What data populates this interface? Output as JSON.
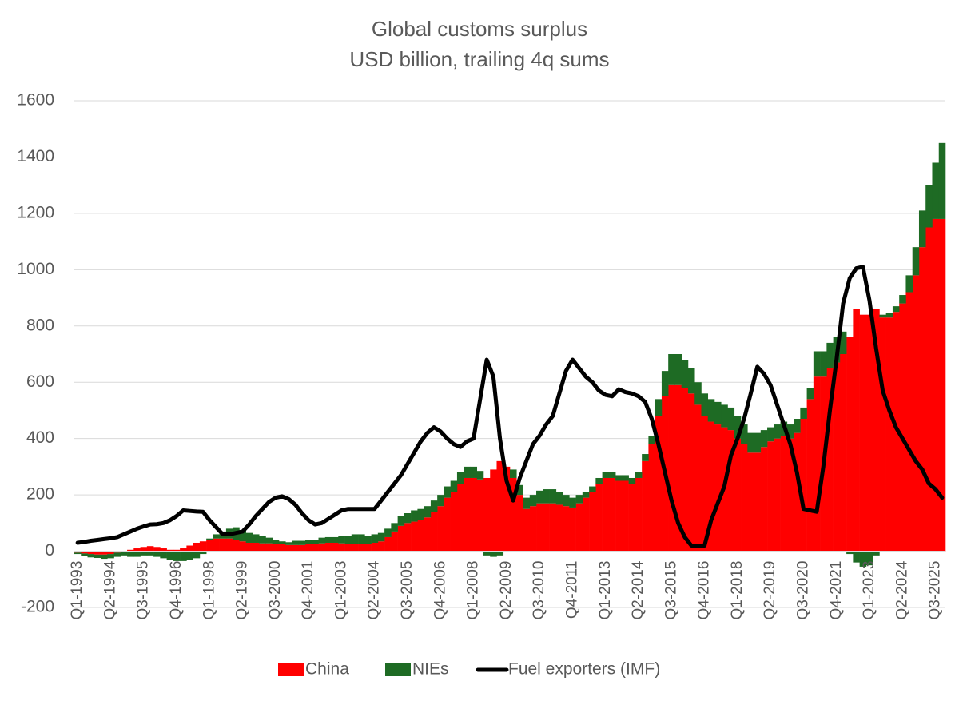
{
  "chart_data": {
    "type": "bar",
    "stacked": true,
    "title": "Global customs surplus",
    "subtitle": "USD billion, trailing 4q sums",
    "categories": [
      "Q1-1993",
      null,
      null,
      null,
      null,
      "Q2-1994",
      null,
      null,
      null,
      null,
      "Q3-1995",
      null,
      null,
      null,
      null,
      "Q4-1996",
      null,
      null,
      null,
      null,
      "Q1-1998",
      null,
      null,
      null,
      null,
      "Q2-1999",
      null,
      null,
      null,
      null,
      "Q3-2000",
      null,
      null,
      null,
      null,
      "Q4-2001",
      null,
      null,
      null,
      null,
      "Q1-2003",
      null,
      null,
      null,
      null,
      "Q2-2004",
      null,
      null,
      null,
      null,
      "Q3-2005",
      null,
      null,
      null,
      null,
      "Q4-2006",
      null,
      null,
      null,
      null,
      "Q1-2008",
      null,
      null,
      null,
      null,
      "Q2-2009",
      null,
      null,
      null,
      null,
      "Q3-2010",
      null,
      null,
      null,
      null,
      "Q4-2011",
      null,
      null,
      null,
      null,
      "Q1-2013",
      null,
      null,
      null,
      null,
      "Q2-2014",
      null,
      null,
      null,
      null,
      "Q3-2015",
      null,
      null,
      null,
      null,
      "Q4-2016",
      null,
      null,
      null,
      null,
      "Q1-2018",
      null,
      null,
      null,
      null,
      "Q2-2019",
      null,
      null,
      null,
      null,
      "Q3-2020",
      null,
      null,
      null,
      null,
      "Q4-2021",
      null,
      null,
      null,
      null,
      "Q1-2023",
      null,
      null,
      null,
      null,
      "Q2-2024",
      null,
      null,
      null,
      null,
      "Q3-2025",
      null
    ],
    "series": [
      {
        "name": "China",
        "color": "#ff0000",
        "type": "bar",
        "values": [
          -5,
          -8,
          -10,
          -12,
          -12,
          -10,
          -5,
          0,
          5,
          10,
          15,
          18,
          15,
          10,
          5,
          5,
          10,
          20,
          30,
          35,
          40,
          45,
          45,
          45,
          40,
          35,
          30,
          30,
          28,
          28,
          25,
          25,
          22,
          22,
          22,
          25,
          25,
          28,
          30,
          30,
          28,
          25,
          25,
          25,
          25,
          30,
          35,
          50,
          70,
          90,
          100,
          105,
          110,
          120,
          140,
          160,
          190,
          210,
          240,
          260,
          260,
          255,
          260,
          290,
          320,
          300,
          260,
          200,
          150,
          160,
          170,
          170,
          170,
          165,
          160,
          155,
          170,
          190,
          210,
          240,
          260,
          260,
          250,
          250,
          240,
          260,
          320,
          380,
          480,
          550,
          590,
          590,
          580,
          560,
          520,
          480,
          460,
          450,
          440,
          430,
          400,
          380,
          350,
          350,
          370,
          390,
          400,
          410,
          400,
          420,
          470,
          540,
          620,
          620,
          650,
          670,
          700,
          760,
          860,
          840,
          840,
          860,
          830,
          830,
          850,
          880,
          920,
          980,
          1080,
          1150,
          1180,
          1180
        ]
      },
      {
        "name": "NIEs",
        "color": "#1e6b24",
        "type": "bar",
        "values": [
          -5,
          -10,
          -12,
          -12,
          -15,
          -15,
          -15,
          -15,
          -20,
          -20,
          -15,
          -15,
          -20,
          -25,
          -30,
          -35,
          -35,
          -30,
          -25,
          -10,
          5,
          15,
          25,
          35,
          45,
          40,
          35,
          30,
          25,
          20,
          15,
          10,
          10,
          15,
          15,
          15,
          15,
          20,
          20,
          20,
          25,
          30,
          35,
          35,
          30,
          30,
          30,
          30,
          30,
          35,
          35,
          40,
          40,
          40,
          40,
          40,
          40,
          40,
          40,
          40,
          40,
          30,
          -15,
          -20,
          -15,
          0,
          30,
          35,
          40,
          40,
          45,
          50,
          50,
          45,
          40,
          35,
          30,
          20,
          20,
          20,
          20,
          20,
          20,
          20,
          20,
          20,
          25,
          30,
          60,
          90,
          110,
          110,
          100,
          90,
          80,
          80,
          80,
          80,
          80,
          80,
          80,
          70,
          70,
          70,
          60,
          50,
          50,
          50,
          50,
          50,
          40,
          40,
          90,
          90,
          90,
          90,
          80,
          -10,
          -40,
          -55,
          -50,
          -15,
          10,
          15,
          20,
          30,
          60,
          100,
          130,
          150,
          200,
          270
        ]
      },
      {
        "name": "Fuel exporters (IMF)",
        "color": "#000000",
        "type": "line",
        "values": [
          30,
          33,
          37,
          40,
          43,
          46,
          50,
          60,
          70,
          80,
          88,
          95,
          96,
          100,
          110,
          125,
          145,
          143,
          141,
          140,
          110,
          85,
          60,
          60,
          65,
          70,
          95,
          125,
          150,
          175,
          190,
          195,
          185,
          165,
          135,
          110,
          95,
          100,
          115,
          130,
          145,
          150,
          150,
          150,
          150,
          150,
          180,
          210,
          240,
          270,
          310,
          350,
          390,
          420,
          440,
          425,
          400,
          380,
          370,
          390,
          400,
          540,
          680,
          620,
          400,
          250,
          180,
          260,
          320,
          380,
          410,
          450,
          480,
          560,
          640,
          680,
          650,
          620,
          600,
          570,
          555,
          550,
          575,
          565,
          560,
          550,
          530,
          470,
          380,
          280,
          180,
          100,
          50,
          20,
          20,
          20,
          110,
          170,
          230,
          340,
          400,
          470,
          560,
          655,
          630,
          590,
          520,
          450,
          380,
          280,
          150,
          145,
          140,
          300,
          500,
          680,
          880,
          970,
          1005,
          1010,
          890,
          720,
          570,
          500,
          440,
          400,
          360,
          320,
          290,
          240,
          220,
          190
        ]
      }
    ],
    "ylim": [
      -200,
      1600
    ],
    "yticks": [
      -200,
      0,
      200,
      400,
      600,
      800,
      1000,
      1200,
      1400,
      1600
    ],
    "grid": true,
    "legend": "bottom"
  }
}
